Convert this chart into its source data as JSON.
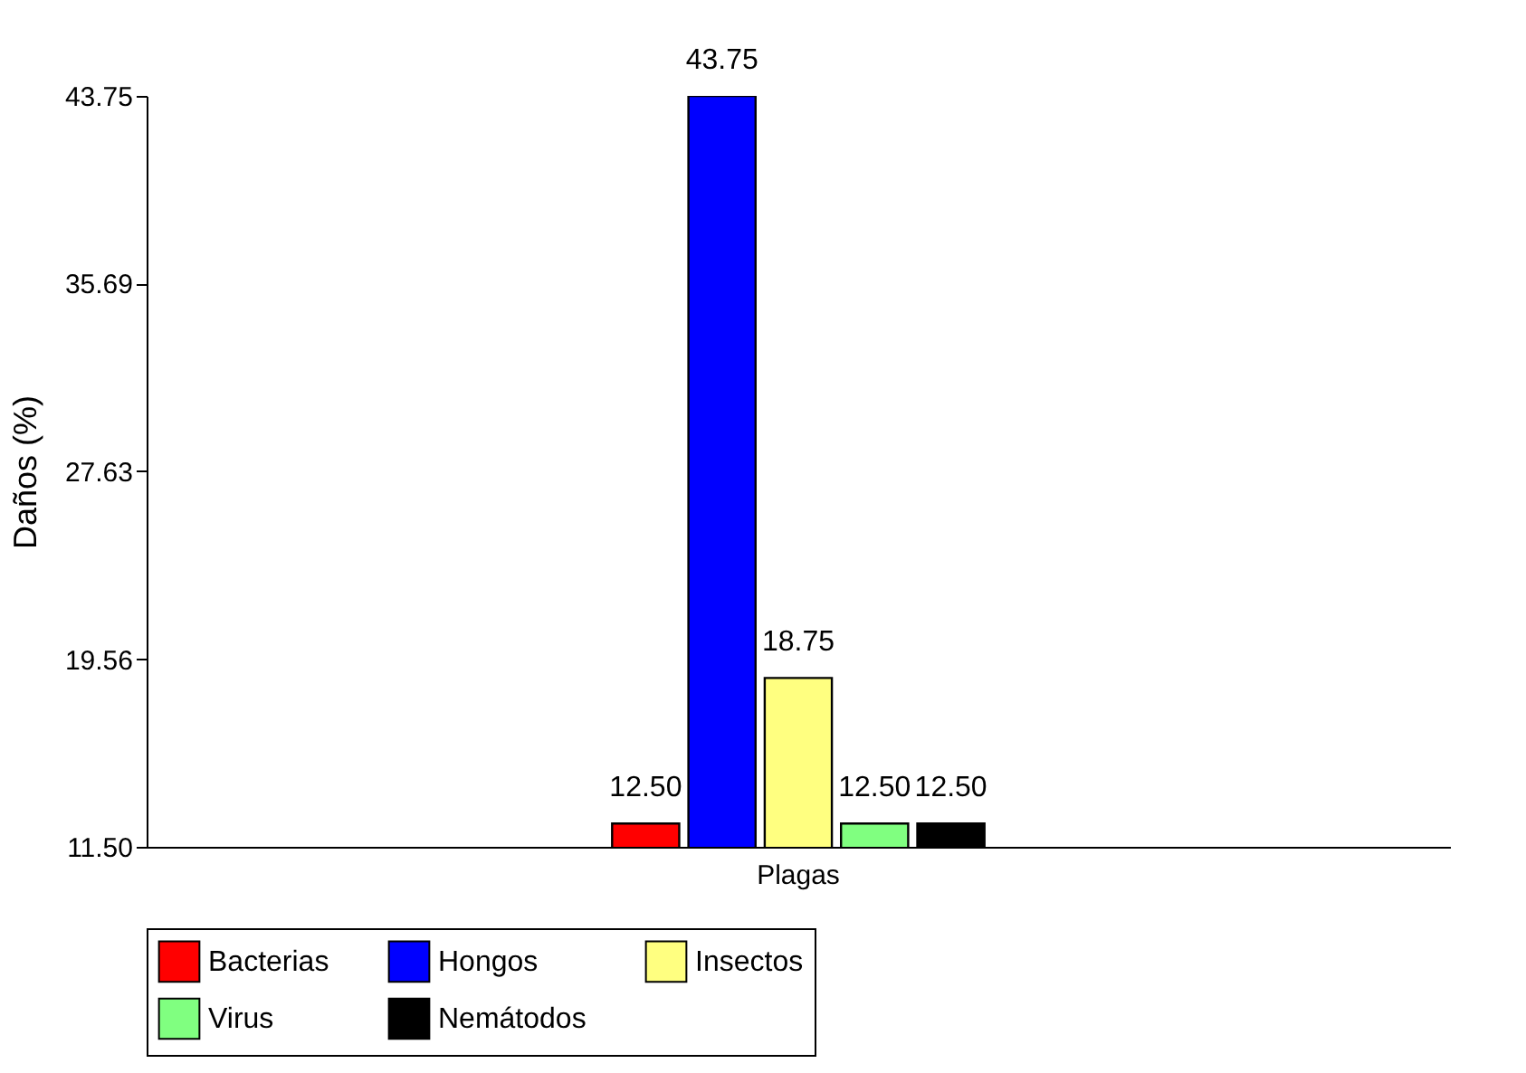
{
  "chart_data": {
    "type": "bar",
    "ylabel": "Daños (%)",
    "categories": [
      "Plagas"
    ],
    "series": [
      {
        "name": "Bacterias",
        "color": "#ff0000",
        "values": [
          12.5
        ],
        "value_labels": [
          "12.50"
        ]
      },
      {
        "name": "Hongos",
        "color": "#0000ff",
        "values": [
          43.75
        ],
        "value_labels": [
          "43.75"
        ]
      },
      {
        "name": "Insectos",
        "color": "#ffff80",
        "values": [
          18.75
        ],
        "value_labels": [
          "18.75"
        ]
      },
      {
        "name": "Virus",
        "color": "#80ff80",
        "values": [
          12.5
        ],
        "value_labels": [
          "12.50"
        ]
      },
      {
        "name": "Nemátodos",
        "color": "#000000",
        "values": [
          12.5
        ],
        "value_labels": [
          "12.50"
        ]
      }
    ],
    "ylim": [
      11.5,
      43.75
    ],
    "yticks": [
      {
        "value": 11.5,
        "label": "11.50"
      },
      {
        "value": 19.56,
        "label": "19.56"
      },
      {
        "value": 27.63,
        "label": "27.63"
      },
      {
        "value": 35.69,
        "label": "35.69"
      },
      43.75
    ],
    "grid": false,
    "legend": "bottom"
  }
}
